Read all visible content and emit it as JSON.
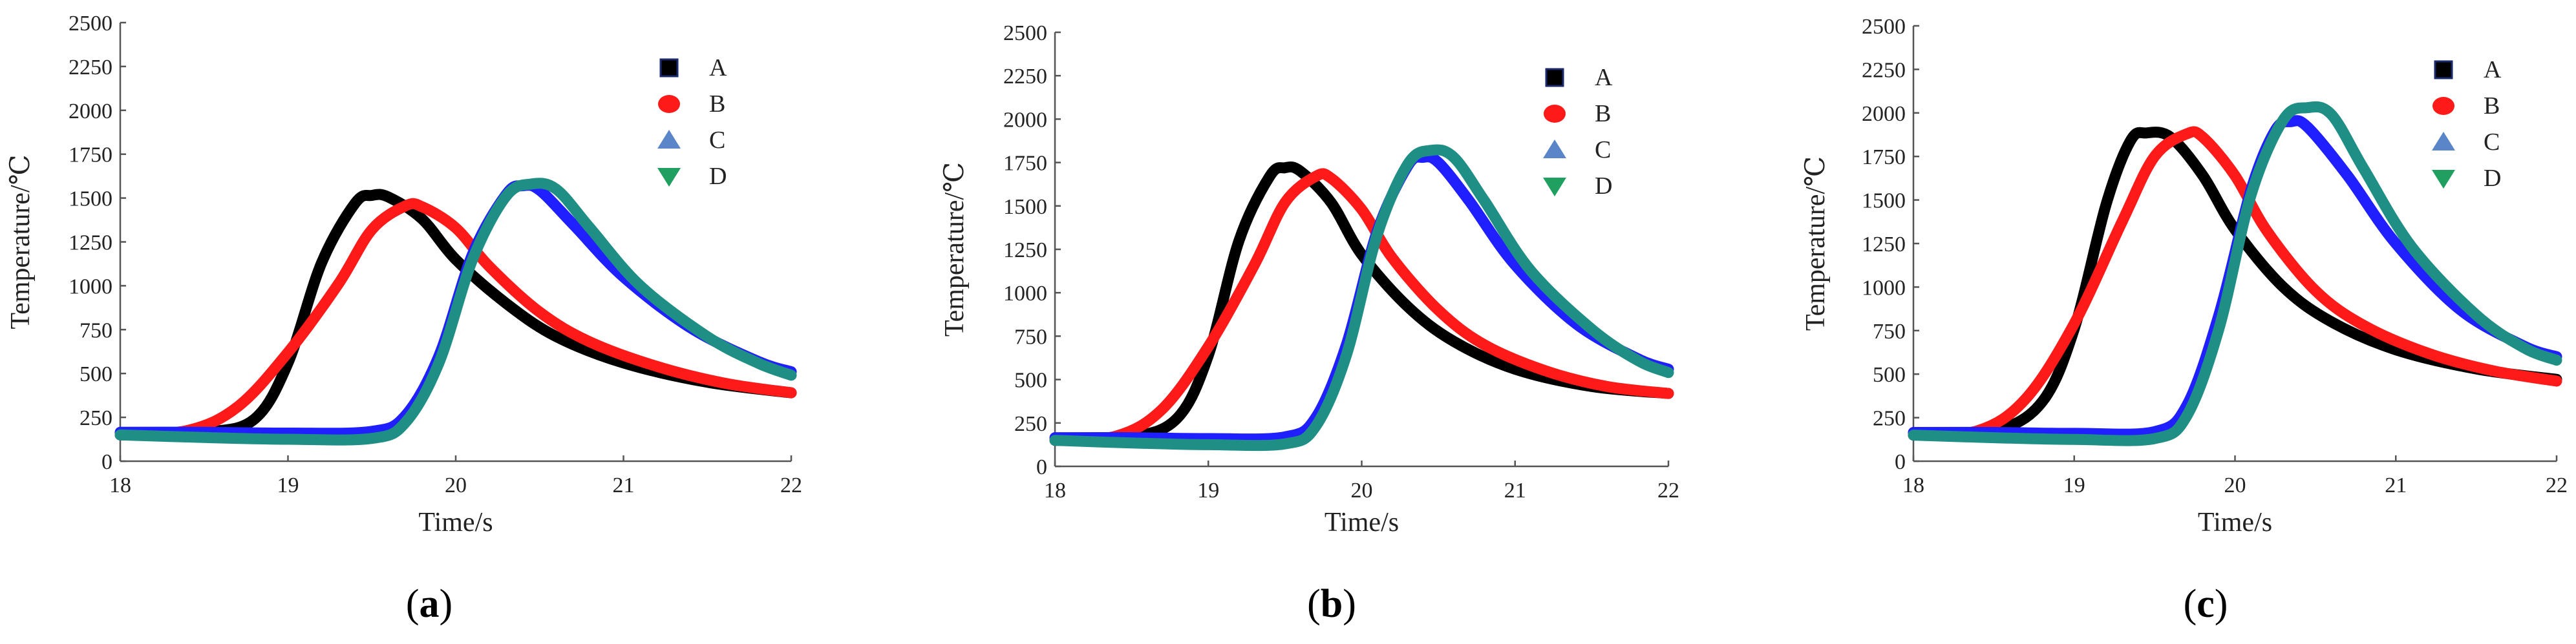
{
  "chart_data": [
    {
      "type": "line",
      "label": "a",
      "xlabel": "Time/s",
      "ylabel": "Temperature/℃",
      "xlim": [
        18,
        22
      ],
      "ylim": [
        0,
        2500
      ],
      "xticks": [
        "18",
        "19",
        "20",
        "21",
        "22"
      ],
      "yticks": [
        "0",
        "250",
        "500",
        "750",
        "1000",
        "1250",
        "1500",
        "1750",
        "2000",
        "2250",
        "2500"
      ],
      "legend": [
        "A",
        "B",
        "C",
        "D"
      ],
      "series": [
        {
          "name": "A",
          "x": [
            18,
            18.5,
            18.8,
            19.0,
            19.2,
            19.4,
            19.5,
            19.6,
            19.8,
            20.0,
            20.3,
            20.6,
            21.0,
            21.5,
            22
          ],
          "y": [
            150,
            165,
            240,
            560,
            1130,
            1470,
            1515,
            1505,
            1380,
            1150,
            900,
            710,
            560,
            450,
            390
          ]
        },
        {
          "name": "B",
          "x": [
            18,
            18.4,
            18.7,
            19.0,
            19.3,
            19.5,
            19.7,
            19.8,
            20.0,
            20.2,
            20.5,
            20.8,
            21.2,
            21.6,
            22
          ],
          "y": [
            155,
            175,
            310,
            620,
            1010,
            1320,
            1455,
            1450,
            1330,
            1110,
            850,
            680,
            540,
            445,
            390
          ]
        },
        {
          "name": "C",
          "x": [
            18,
            18.5,
            19.0,
            19.5,
            19.7,
            19.9,
            20.1,
            20.3,
            20.4,
            20.5,
            20.7,
            21.0,
            21.4,
            21.8,
            22
          ],
          "y": [
            165,
            165,
            160,
            170,
            260,
            600,
            1180,
            1520,
            1570,
            1545,
            1350,
            1050,
            760,
            570,
            510
          ]
        },
        {
          "name": "D",
          "x": [
            18,
            18.5,
            19.0,
            19.5,
            19.7,
            19.9,
            20.1,
            20.3,
            20.45,
            20.6,
            20.8,
            21.1,
            21.5,
            21.8,
            22
          ],
          "y": [
            150,
            135,
            125,
            130,
            220,
            560,
            1150,
            1510,
            1580,
            1550,
            1330,
            1000,
            710,
            560,
            490
          ]
        }
      ]
    },
    {
      "type": "line",
      "label": "b",
      "xlabel": "Time/s",
      "ylabel": "Temperature/℃",
      "xlim": [
        18,
        22
      ],
      "ylim": [
        0,
        2500
      ],
      "xticks": [
        "18",
        "19",
        "20",
        "21",
        "22"
      ],
      "yticks": [
        "0",
        "250",
        "500",
        "750",
        "1000",
        "1250",
        "1500",
        "1750",
        "2000",
        "2250",
        "2500"
      ],
      "legend": [
        "A",
        "B",
        "C",
        "D"
      ],
      "series": [
        {
          "name": "A",
          "x": [
            18,
            18.5,
            18.8,
            19.0,
            19.2,
            19.4,
            19.5,
            19.6,
            19.8,
            20.0,
            20.3,
            20.6,
            21.0,
            21.5,
            22
          ],
          "y": [
            150,
            170,
            280,
            640,
            1300,
            1670,
            1720,
            1700,
            1520,
            1220,
            920,
            720,
            560,
            460,
            420
          ]
        },
        {
          "name": "B",
          "x": [
            18,
            18.4,
            18.7,
            19.0,
            19.3,
            19.5,
            19.7,
            19.8,
            20.0,
            20.2,
            20.5,
            20.8,
            21.2,
            21.6,
            22
          ],
          "y": [
            155,
            175,
            330,
            690,
            1160,
            1520,
            1670,
            1660,
            1480,
            1200,
            900,
            700,
            550,
            460,
            420
          ]
        },
        {
          "name": "C",
          "x": [
            18,
            18.5,
            19.0,
            19.5,
            19.7,
            19.9,
            20.1,
            20.3,
            20.4,
            20.5,
            20.7,
            21.0,
            21.4,
            21.8,
            22
          ],
          "y": [
            165,
            165,
            160,
            170,
            280,
            700,
            1350,
            1730,
            1780,
            1750,
            1530,
            1160,
            820,
            620,
            560
          ]
        },
        {
          "name": "D",
          "x": [
            18,
            18.5,
            19.0,
            19.5,
            19.7,
            19.9,
            20.1,
            20.3,
            20.45,
            20.6,
            20.8,
            21.1,
            21.5,
            21.8,
            22
          ],
          "y": [
            150,
            135,
            125,
            130,
            230,
            640,
            1330,
            1740,
            1820,
            1780,
            1530,
            1130,
            790,
            610,
            540
          ]
        }
      ]
    },
    {
      "type": "line",
      "label": "c",
      "xlabel": "Time/s",
      "ylabel": "Temperature/℃",
      "xlim": [
        18,
        22
      ],
      "ylim": [
        0,
        2500
      ],
      "xticks": [
        "18",
        "19",
        "20",
        "21",
        "22"
      ],
      "yticks": [
        "0",
        "250",
        "500",
        "750",
        "1000",
        "1250",
        "1500",
        "1750",
        "2000",
        "2250",
        "2500"
      ],
      "legend": [
        "A",
        "B",
        "C",
        "D"
      ],
      "series": [
        {
          "name": "A",
          "x": [
            18,
            18.5,
            18.8,
            19.0,
            19.2,
            19.35,
            19.45,
            19.6,
            19.8,
            20.0,
            20.3,
            20.6,
            21.0,
            21.5,
            22
          ],
          "y": [
            150,
            175,
            340,
            760,
            1480,
            1840,
            1885,
            1860,
            1640,
            1330,
            1000,
            800,
            640,
            530,
            470
          ]
        },
        {
          "name": "B",
          "x": [
            18,
            18.4,
            18.7,
            19.0,
            19.3,
            19.5,
            19.7,
            19.8,
            20.0,
            20.2,
            20.5,
            20.8,
            21.2,
            21.6,
            22
          ],
          "y": [
            155,
            175,
            360,
            790,
            1380,
            1750,
            1880,
            1860,
            1640,
            1320,
            980,
            780,
            620,
            520,
            460
          ]
        },
        {
          "name": "C",
          "x": [
            18,
            18.5,
            19.0,
            19.5,
            19.7,
            19.9,
            20.1,
            20.25,
            20.35,
            20.45,
            20.7,
            21.0,
            21.4,
            21.8,
            22
          ],
          "y": [
            165,
            165,
            160,
            170,
            320,
            840,
            1560,
            1900,
            1950,
            1920,
            1640,
            1250,
            870,
            660,
            600
          ]
        },
        {
          "name": "D",
          "x": [
            18,
            18.5,
            19.0,
            19.5,
            19.7,
            19.9,
            20.1,
            20.3,
            20.45,
            20.6,
            20.8,
            21.1,
            21.5,
            21.8,
            22
          ],
          "y": [
            150,
            135,
            125,
            130,
            260,
            760,
            1530,
            1960,
            2030,
            1990,
            1680,
            1230,
            840,
            650,
            580
          ]
        }
      ]
    }
  ],
  "series_colors": {
    "A": "#000000",
    "B": "#ff1a1a",
    "C": "#1f1fff",
    "D": "#1f8f86"
  },
  "marker_colors": {
    "A": "#000000",
    "B": "#ff1a1a",
    "C": "#5a86c9",
    "D": "#1fa060"
  },
  "marker_shapes": {
    "A": "square",
    "B": "circle",
    "C": "triangle-up",
    "D": "triangle-down"
  },
  "subfigure_labels": [
    {
      "open": "(",
      "letter": "a",
      "close": ")"
    },
    {
      "open": "(",
      "letter": "b",
      "close": ")"
    },
    {
      "open": "(",
      "letter": "c",
      "close": ")"
    }
  ]
}
